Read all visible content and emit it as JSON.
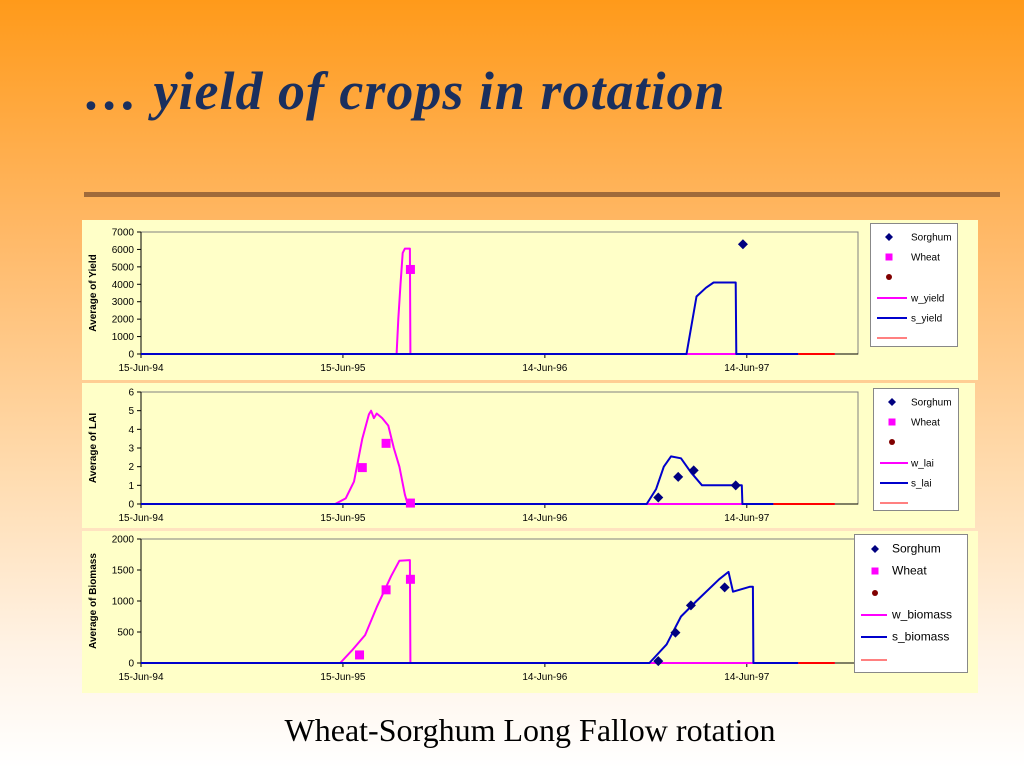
{
  "title": "… yield of crops in rotation",
  "caption": "Wheat-Sorghum Long Fallow rotation",
  "colors": {
    "wheat": "#ff00ff",
    "sorghum": "#0000cc",
    "sorghum_marker": "#000080",
    "extra_marker": "#800000",
    "extra_line": "#ff0000",
    "plot_bg": "#ffffc8"
  },
  "chart_data": [
    {
      "type": "line",
      "ylabel": "Average of Yield",
      "ylim": [
        0,
        7000
      ],
      "yticks": [
        0,
        1000,
        2000,
        3000,
        4000,
        5000,
        6000,
        7000
      ],
      "xlim": [
        "1994-06-15",
        "1998-01-01"
      ],
      "xtick_labels": [
        "15-Jun-94",
        "15-Jun-95",
        "14-Jun-96",
        "14-Jun-97"
      ],
      "grid": false,
      "legend_position": "right",
      "legend": [
        "Sorghum",
        "Wheat",
        "",
        "w_yield",
        "s_yield",
        ""
      ],
      "series": [
        {
          "name": "Sorghum",
          "kind": "marker",
          "marker": "diamond",
          "color": "#000080",
          "points": [
            [
              "1997-06-07",
              6300
            ]
          ]
        },
        {
          "name": "Wheat",
          "kind": "marker",
          "marker": "square",
          "color": "#ff00ff",
          "points": [
            [
              "1995-10-15",
              4850
            ]
          ]
        },
        {
          "name": "w_yield",
          "kind": "line",
          "color": "#ff00ff",
          "points": [
            [
              "1994-06-15",
              0
            ],
            [
              "1995-09-20",
              0
            ],
            [
              "1995-09-23",
              2000
            ],
            [
              "1995-09-27",
              4000
            ],
            [
              "1995-10-01",
              5800
            ],
            [
              "1995-10-05",
              6050
            ],
            [
              "1995-10-14",
              6050
            ],
            [
              "1995-10-15",
              0
            ],
            [
              "1997-02-25",
              0
            ],
            [
              "1997-02-25",
              0
            ],
            [
              "1997-11-20",
              0
            ]
          ]
        },
        {
          "name": "s_yield",
          "kind": "line",
          "color": "#0000cc",
          "points": [
            [
              "1994-06-15",
              0
            ],
            [
              "1997-02-25",
              0
            ],
            [
              "1997-03-15",
              3300
            ],
            [
              "1997-04-01",
              3800
            ],
            [
              "1997-04-15",
              4100
            ],
            [
              "1997-05-25",
              4100
            ],
            [
              "1997-05-26",
              0
            ],
            [
              "1997-09-15",
              0
            ]
          ]
        },
        {
          "name": "",
          "kind": "line",
          "color": "#ff0000",
          "points": [
            [
              "1997-09-15",
              0
            ],
            [
              "1997-11-20",
              0
            ]
          ]
        }
      ]
    },
    {
      "type": "line",
      "ylabel": "Average of LAI",
      "ylim": [
        0,
        6
      ],
      "yticks": [
        0,
        1,
        2,
        3,
        4,
        5,
        6
      ],
      "xlim": [
        "1994-06-15",
        "1998-01-01"
      ],
      "xtick_labels": [
        "15-Jun-94",
        "15-Jun-95",
        "14-Jun-96",
        "14-Jun-97"
      ],
      "grid": false,
      "legend_position": "right",
      "legend": [
        "Sorghum",
        "Wheat",
        "",
        "w_lai",
        "s_lai",
        ""
      ],
      "series": [
        {
          "name": "Sorghum",
          "kind": "marker",
          "marker": "diamond",
          "color": "#000080",
          "points": [
            [
              "1997-01-05",
              0.35
            ],
            [
              "1997-02-10",
              1.45
            ],
            [
              "1997-03-10",
              1.8
            ],
            [
              "1997-05-25",
              1.0
            ]
          ]
        },
        {
          "name": "Wheat",
          "kind": "marker",
          "marker": "square",
          "color": "#ff00ff",
          "points": [
            [
              "1995-07-20",
              1.95
            ],
            [
              "1995-09-01",
              3.25
            ],
            [
              "1995-10-15",
              0.05
            ]
          ]
        },
        {
          "name": "w_lai",
          "kind": "line",
          "color": "#ff00ff",
          "points": [
            [
              "1994-06-15",
              0
            ],
            [
              "1995-06-01",
              0
            ],
            [
              "1995-06-20",
              0.3
            ],
            [
              "1995-07-05",
              1.2
            ],
            [
              "1995-07-20",
              3.5
            ],
            [
              "1995-08-01",
              4.8
            ],
            [
              "1995-08-05",
              5.0
            ],
            [
              "1995-08-10",
              4.6
            ],
            [
              "1995-08-15",
              4.85
            ],
            [
              "1995-08-25",
              4.6
            ],
            [
              "1995-09-05",
              4.2
            ],
            [
              "1995-09-15",
              3.0
            ],
            [
              "1995-09-25",
              2.0
            ],
            [
              "1995-10-05",
              0.5
            ],
            [
              "1995-10-10",
              0
            ],
            [
              "1997-06-20",
              0
            ],
            [
              "1997-11-20",
              0
            ]
          ]
        },
        {
          "name": "s_lai",
          "kind": "line",
          "color": "#0000cc",
          "points": [
            [
              "1994-06-15",
              0
            ],
            [
              "1996-12-15",
              0
            ],
            [
              "1997-01-01",
              0.8
            ],
            [
              "1997-01-15",
              2.0
            ],
            [
              "1997-01-28",
              2.55
            ],
            [
              "1997-02-15",
              2.45
            ],
            [
              "1997-03-05",
              1.7
            ],
            [
              "1997-03-25",
              1.0
            ],
            [
              "1997-06-05",
              1.0
            ],
            [
              "1997-06-06",
              0
            ],
            [
              "1997-08-01",
              0
            ]
          ]
        },
        {
          "name": "",
          "kind": "line",
          "color": "#ff0000",
          "points": [
            [
              "1997-08-01",
              0
            ],
            [
              "1997-11-20",
              0
            ]
          ]
        }
      ]
    },
    {
      "type": "line",
      "ylabel": "Average of Biomass",
      "ylim": [
        0,
        2000
      ],
      "yticks": [
        0,
        500,
        1000,
        1500,
        2000
      ],
      "xlim": [
        "1994-06-15",
        "1998-01-01"
      ],
      "xtick_labels": [
        "15-Jun-94",
        "15-Jun-95",
        "14-Jun-96",
        "14-Jun-97"
      ],
      "grid": false,
      "legend_position": "right",
      "legend": [
        "Sorghum",
        "Wheat",
        "",
        "w_biomass",
        "s_biomass",
        ""
      ],
      "series": [
        {
          "name": "Sorghum",
          "kind": "marker",
          "marker": "diamond",
          "color": "#000080",
          "points": [
            [
              "1997-01-05",
              30
            ],
            [
              "1997-02-05",
              490
            ],
            [
              "1997-03-05",
              930
            ],
            [
              "1997-05-05",
              1220
            ]
          ]
        },
        {
          "name": "Wheat",
          "kind": "marker",
          "marker": "square",
          "color": "#ff00ff",
          "points": [
            [
              "1995-07-15",
              130
            ],
            [
              "1995-09-01",
              1180
            ],
            [
              "1995-10-15",
              1350
            ]
          ]
        },
        {
          "name": "w_biomass",
          "kind": "line",
          "color": "#ff00ff",
          "points": [
            [
              "1994-06-15",
              0
            ],
            [
              "1995-06-10",
              0
            ],
            [
              "1995-07-01",
              200
            ],
            [
              "1995-07-25",
              450
            ],
            [
              "1995-08-15",
              900
            ],
            [
              "1995-09-10",
              1400
            ],
            [
              "1995-09-25",
              1650
            ],
            [
              "1995-10-14",
              1660
            ],
            [
              "1995-10-15",
              0
            ],
            [
              "1997-11-20",
              0
            ]
          ]
        },
        {
          "name": "s_biomass",
          "kind": "line",
          "color": "#0000cc",
          "points": [
            [
              "1994-06-15",
              0
            ],
            [
              "1996-12-20",
              0
            ],
            [
              "1997-01-20",
              300
            ],
            [
              "1997-02-15",
              750
            ],
            [
              "1997-03-15",
              1000
            ],
            [
              "1997-04-25",
              1350
            ],
            [
              "1997-05-12",
              1470
            ],
            [
              "1997-05-20",
              1150
            ],
            [
              "1997-06-20",
              1230
            ],
            [
              "1997-06-25",
              1230
            ],
            [
              "1997-06-26",
              0
            ],
            [
              "1997-09-15",
              0
            ]
          ]
        },
        {
          "name": "",
          "kind": "line",
          "color": "#ff0000",
          "points": [
            [
              "1997-09-15",
              0
            ],
            [
              "1997-11-20",
              0
            ]
          ]
        }
      ]
    }
  ]
}
